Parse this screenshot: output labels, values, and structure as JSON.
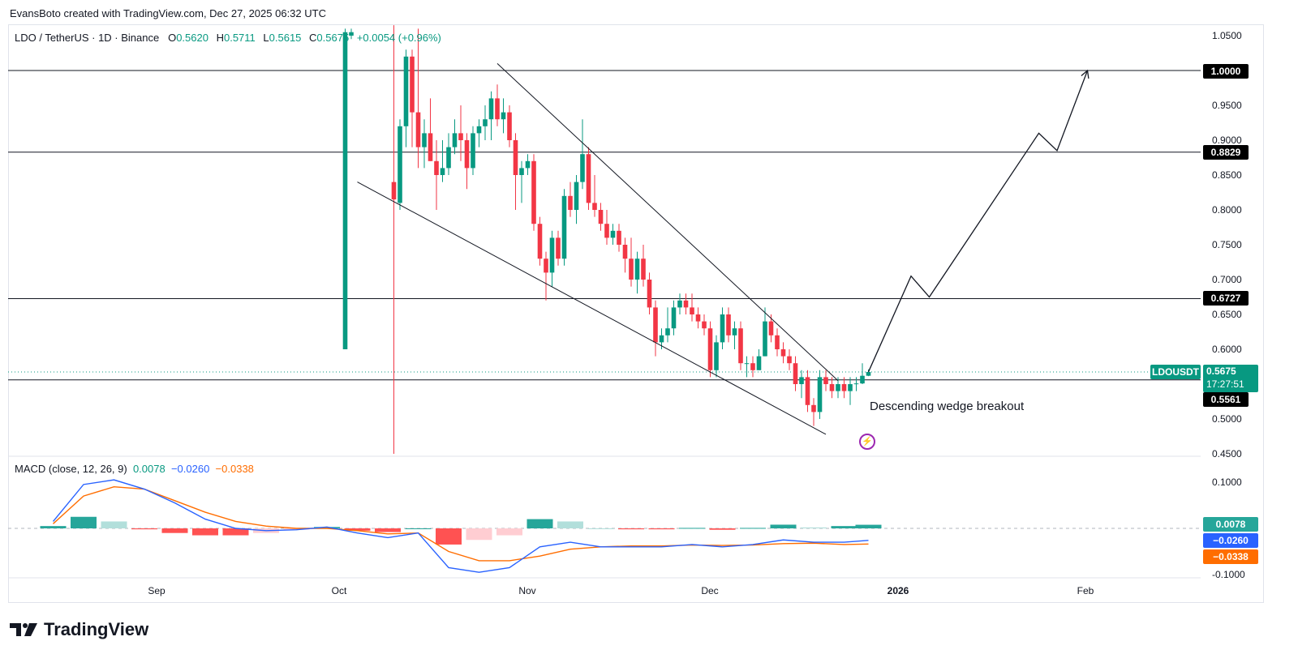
{
  "header": {
    "credit": "EvansBoto created with TradingView.com, Dec 27, 2025 06:32 UTC"
  },
  "legend": {
    "symbol": "LDO / TetherUS · 1D · Binance",
    "open_label": "O",
    "open": "0.5620",
    "high_label": "H",
    "high": "0.5711",
    "low_label": "L",
    "low": "0.5615",
    "close_label": "C",
    "close": "0.5675",
    "change": "+0.0054 (+0.96%)"
  },
  "macd_legend": {
    "title": "MACD (close, 12, 26, 9)",
    "hist": "0.0078",
    "macd": "−0.0260",
    "signal": "−0.0338"
  },
  "annotation": "Descending wedge breakout",
  "brand": "TradingView",
  "price_axis": [
    "1.0500",
    "0.9500",
    "0.9000",
    "0.8500",
    "0.8000",
    "0.7500",
    "0.7000",
    "0.6500",
    "0.6000",
    "0.5000",
    "0.4500"
  ],
  "macd_axis": [
    "0.1000",
    "-0.1000"
  ],
  "time_axis": [
    "Sep",
    "Oct",
    "Nov",
    "Dec",
    "2026",
    "Feb"
  ],
  "tags": {
    "level_1": "1.0000",
    "level_2": "0.8829",
    "level_3": "0.6727",
    "level_4": "0.5561",
    "symbol": "LDOUSDT",
    "price": "0.5675",
    "countdown": "17:27:51",
    "macd_hist": "0.0078",
    "macd_line": "−0.0260",
    "macd_signal": "−0.0338"
  },
  "colors": {
    "up": "#089981",
    "down": "#f23645",
    "macd_line": "#2962ff",
    "signal_line": "#ff6d00",
    "hist_up_strong": "#26a69a",
    "hist_up_weak": "#b2dfdb",
    "hist_down_strong": "#ff5252",
    "hist_down_weak": "#ffcdd2"
  },
  "chart_data": {
    "type": "candlestick",
    "title": "LDO / TetherUS · 1D · Binance",
    "ylim": [
      0.45,
      1.06
    ],
    "horizontal_levels": [
      1.0,
      0.8829,
      0.6727,
      0.5561
    ],
    "last_price": 0.5675,
    "candles": [
      {
        "d": "2025-10-10",
        "o": 0.84,
        "h": 1.07,
        "l": 0.45,
        "c": 0.815
      },
      {
        "d": "2025-10-11",
        "o": 0.81,
        "h": 0.93,
        "l": 0.8,
        "c": 0.92
      },
      {
        "d": "2025-10-12",
        "o": 0.92,
        "h": 1.03,
        "l": 0.89,
        "c": 1.02
      },
      {
        "d": "2025-10-13",
        "o": 1.02,
        "h": 1.03,
        "l": 0.89,
        "c": 0.94
      },
      {
        "d": "2025-10-14",
        "o": 0.94,
        "h": 1.06,
        "l": 0.86,
        "c": 0.89
      },
      {
        "d": "2025-10-15",
        "o": 0.89,
        "h": 0.93,
        "l": 0.86,
        "c": 0.91
      },
      {
        "d": "2025-10-16",
        "o": 0.91,
        "h": 0.96,
        "l": 0.87,
        "c": 0.87
      },
      {
        "d": "2025-10-17",
        "o": 0.87,
        "h": 0.9,
        "l": 0.8,
        "c": 0.85
      },
      {
        "d": "2025-10-18",
        "o": 0.85,
        "h": 0.9,
        "l": 0.84,
        "c": 0.86
      },
      {
        "d": "2025-10-19",
        "o": 0.86,
        "h": 0.91,
        "l": 0.85,
        "c": 0.89
      },
      {
        "d": "2025-10-20",
        "o": 0.89,
        "h": 0.93,
        "l": 0.88,
        "c": 0.91
      },
      {
        "d": "2025-10-21",
        "o": 0.91,
        "h": 0.95,
        "l": 0.87,
        "c": 0.9
      },
      {
        "d": "2025-10-22",
        "o": 0.9,
        "h": 0.91,
        "l": 0.83,
        "c": 0.86
      },
      {
        "d": "2025-10-23",
        "o": 0.86,
        "h": 0.92,
        "l": 0.85,
        "c": 0.91
      },
      {
        "d": "2025-10-24",
        "o": 0.91,
        "h": 0.93,
        "l": 0.89,
        "c": 0.92
      },
      {
        "d": "2025-10-25",
        "o": 0.92,
        "h": 0.95,
        "l": 0.9,
        "c": 0.93
      },
      {
        "d": "2025-10-26",
        "o": 0.93,
        "h": 0.97,
        "l": 0.9,
        "c": 0.96
      },
      {
        "d": "2025-10-27",
        "o": 0.96,
        "h": 0.98,
        "l": 0.92,
        "c": 0.93
      },
      {
        "d": "2025-10-28",
        "o": 0.93,
        "h": 0.96,
        "l": 0.91,
        "c": 0.94
      },
      {
        "d": "2025-10-29",
        "o": 0.94,
        "h": 0.95,
        "l": 0.89,
        "c": 0.9
      },
      {
        "d": "2025-10-30",
        "o": 0.9,
        "h": 0.91,
        "l": 0.8,
        "c": 0.85
      },
      {
        "d": "2025-10-31",
        "o": 0.85,
        "h": 0.87,
        "l": 0.81,
        "c": 0.86
      },
      {
        "d": "2025-11-01",
        "o": 0.86,
        "h": 0.88,
        "l": 0.85,
        "c": 0.87
      },
      {
        "d": "2025-11-02",
        "o": 0.87,
        "h": 0.88,
        "l": 0.77,
        "c": 0.78
      },
      {
        "d": "2025-11-03",
        "o": 0.78,
        "h": 0.79,
        "l": 0.72,
        "c": 0.73
      },
      {
        "d": "2025-11-04",
        "o": 0.73,
        "h": 0.74,
        "l": 0.67,
        "c": 0.71
      },
      {
        "d": "2025-11-05",
        "o": 0.71,
        "h": 0.77,
        "l": 0.69,
        "c": 0.76
      },
      {
        "d": "2025-11-06",
        "o": 0.76,
        "h": 0.77,
        "l": 0.72,
        "c": 0.73
      },
      {
        "d": "2025-11-07",
        "o": 0.73,
        "h": 0.83,
        "l": 0.72,
        "c": 0.82
      },
      {
        "d": "2025-11-08",
        "o": 0.82,
        "h": 0.84,
        "l": 0.79,
        "c": 0.8
      },
      {
        "d": "2025-11-09",
        "o": 0.8,
        "h": 0.85,
        "l": 0.78,
        "c": 0.84
      },
      {
        "d": "2025-11-10",
        "o": 0.84,
        "h": 0.93,
        "l": 0.83,
        "c": 0.88
      },
      {
        "d": "2025-11-11",
        "o": 0.88,
        "h": 0.89,
        "l": 0.8,
        "c": 0.81
      },
      {
        "d": "2025-11-12",
        "o": 0.81,
        "h": 0.85,
        "l": 0.79,
        "c": 0.8
      },
      {
        "d": "2025-11-13",
        "o": 0.8,
        "h": 0.81,
        "l": 0.77,
        "c": 0.78
      },
      {
        "d": "2025-11-14",
        "o": 0.78,
        "h": 0.8,
        "l": 0.75,
        "c": 0.76
      },
      {
        "d": "2025-11-15",
        "o": 0.76,
        "h": 0.78,
        "l": 0.75,
        "c": 0.77
      },
      {
        "d": "2025-11-16",
        "o": 0.77,
        "h": 0.78,
        "l": 0.74,
        "c": 0.75
      },
      {
        "d": "2025-11-17",
        "o": 0.75,
        "h": 0.76,
        "l": 0.71,
        "c": 0.73
      },
      {
        "d": "2025-11-18",
        "o": 0.73,
        "h": 0.76,
        "l": 0.69,
        "c": 0.7
      },
      {
        "d": "2025-11-19",
        "o": 0.7,
        "h": 0.74,
        "l": 0.68,
        "c": 0.73
      },
      {
        "d": "2025-11-20",
        "o": 0.73,
        "h": 0.75,
        "l": 0.69,
        "c": 0.7
      },
      {
        "d": "2025-11-21",
        "o": 0.7,
        "h": 0.71,
        "l": 0.65,
        "c": 0.66
      },
      {
        "d": "2025-11-22",
        "o": 0.66,
        "h": 0.67,
        "l": 0.59,
        "c": 0.61
      },
      {
        "d": "2025-11-23",
        "o": 0.61,
        "h": 0.63,
        "l": 0.6,
        "c": 0.62
      },
      {
        "d": "2025-11-24",
        "o": 0.62,
        "h": 0.66,
        "l": 0.61,
        "c": 0.63
      },
      {
        "d": "2025-11-25",
        "o": 0.63,
        "h": 0.67,
        "l": 0.62,
        "c": 0.66
      },
      {
        "d": "2025-11-26",
        "o": 0.66,
        "h": 0.68,
        "l": 0.65,
        "c": 0.67
      },
      {
        "d": "2025-11-27",
        "o": 0.67,
        "h": 0.68,
        "l": 0.65,
        "c": 0.66
      },
      {
        "d": "2025-11-28",
        "o": 0.66,
        "h": 0.68,
        "l": 0.64,
        "c": 0.65
      },
      {
        "d": "2025-11-29",
        "o": 0.65,
        "h": 0.66,
        "l": 0.63,
        "c": 0.64
      },
      {
        "d": "2025-11-30",
        "o": 0.64,
        "h": 0.65,
        "l": 0.62,
        "c": 0.63
      },
      {
        "d": "2025-12-01",
        "o": 0.63,
        "h": 0.64,
        "l": 0.56,
        "c": 0.57
      },
      {
        "d": "2025-12-02",
        "o": 0.57,
        "h": 0.62,
        "l": 0.56,
        "c": 0.61
      },
      {
        "d": "2025-12-03",
        "o": 0.61,
        "h": 0.66,
        "l": 0.6,
        "c": 0.65
      },
      {
        "d": "2025-12-04",
        "o": 0.65,
        "h": 0.66,
        "l": 0.61,
        "c": 0.62
      },
      {
        "d": "2025-12-05",
        "o": 0.62,
        "h": 0.64,
        "l": 0.6,
        "c": 0.63
      },
      {
        "d": "2025-12-06",
        "o": 0.63,
        "h": 0.64,
        "l": 0.57,
        "c": 0.58
      },
      {
        "d": "2025-12-07",
        "o": 0.58,
        "h": 0.59,
        "l": 0.56,
        "c": 0.58
      },
      {
        "d": "2025-12-08",
        "o": 0.58,
        "h": 0.59,
        "l": 0.56,
        "c": 0.57
      },
      {
        "d": "2025-12-09",
        "o": 0.57,
        "h": 0.6,
        "l": 0.57,
        "c": 0.59
      },
      {
        "d": "2025-12-10",
        "o": 0.59,
        "h": 0.66,
        "l": 0.59,
        "c": 0.64
      },
      {
        "d": "2025-12-11",
        "o": 0.64,
        "h": 0.65,
        "l": 0.61,
        "c": 0.62
      },
      {
        "d": "2025-12-12",
        "o": 0.62,
        "h": 0.63,
        "l": 0.59,
        "c": 0.6
      },
      {
        "d": "2025-12-13",
        "o": 0.6,
        "h": 0.61,
        "l": 0.58,
        "c": 0.59
      },
      {
        "d": "2025-12-14",
        "o": 0.59,
        "h": 0.6,
        "l": 0.57,
        "c": 0.58
      },
      {
        "d": "2025-12-15",
        "o": 0.58,
        "h": 0.59,
        "l": 0.54,
        "c": 0.55
      },
      {
        "d": "2025-12-16",
        "o": 0.55,
        "h": 0.57,
        "l": 0.53,
        "c": 0.56
      },
      {
        "d": "2025-12-17",
        "o": 0.56,
        "h": 0.57,
        "l": 0.51,
        "c": 0.52
      },
      {
        "d": "2025-12-18",
        "o": 0.52,
        "h": 0.53,
        "l": 0.49,
        "c": 0.51
      },
      {
        "d": "2025-12-19",
        "o": 0.51,
        "h": 0.57,
        "l": 0.5,
        "c": 0.56
      },
      {
        "d": "2025-12-20",
        "o": 0.56,
        "h": 0.57,
        "l": 0.54,
        "c": 0.55
      },
      {
        "d": "2025-12-21",
        "o": 0.55,
        "h": 0.56,
        "l": 0.53,
        "c": 0.54
      },
      {
        "d": "2025-12-22",
        "o": 0.54,
        "h": 0.56,
        "l": 0.53,
        "c": 0.55
      },
      {
        "d": "2025-12-23",
        "o": 0.55,
        "h": 0.56,
        "l": 0.53,
        "c": 0.54
      },
      {
        "d": "2025-12-24",
        "o": 0.54,
        "h": 0.56,
        "l": 0.52,
        "c": 0.55
      },
      {
        "d": "2025-12-25",
        "o": 0.55,
        "h": 0.56,
        "l": 0.54,
        "c": 0.551
      },
      {
        "d": "2025-12-26",
        "o": 0.551,
        "h": 0.58,
        "l": 0.55,
        "c": 0.562
      },
      {
        "d": "2025-12-27",
        "o": 0.562,
        "h": 0.5711,
        "l": 0.5615,
        "c": 0.5675
      }
    ],
    "early_candles": [
      {
        "d": "2025-10-02",
        "o": 0.6,
        "h": 1.06,
        "l": 1.04,
        "c": 1.055
      },
      {
        "d": "2025-10-03",
        "o": 1.05,
        "h": 1.06,
        "l": 1.045,
        "c": 1.055
      }
    ],
    "wedge": {
      "upper": [
        [
          "2025-10-27",
          1.01
        ],
        [
          "2025-12-22",
          0.555
        ]
      ],
      "lower": [
        [
          "2025-10-04",
          0.84
        ],
        [
          "2025-12-20",
          0.478
        ]
      ]
    },
    "projection": [
      [
        "2025-12-27",
        0.5675
      ],
      [
        "2026-01-03",
        0.705
      ],
      [
        "2026-01-06",
        0.675
      ],
      [
        "2026-01-24",
        0.91
      ],
      [
        "2026-01-27",
        0.885
      ],
      [
        "2026-02-01",
        1.0
      ]
    ],
    "macd": {
      "ylim": [
        -0.11,
        0.13
      ],
      "x": [
        "2025-08-15",
        "2025-08-20",
        "2025-08-25",
        "2025-08-30",
        "2025-09-04",
        "2025-09-09",
        "2025-09-14",
        "2025-09-19",
        "2025-09-24",
        "2025-09-29",
        "2025-10-04",
        "2025-10-09",
        "2025-10-14",
        "2025-10-19",
        "2025-10-24",
        "2025-10-29",
        "2025-11-03",
        "2025-11-08",
        "2025-11-13",
        "2025-11-18",
        "2025-11-23",
        "2025-11-28",
        "2025-12-03",
        "2025-12-08",
        "2025-12-13",
        "2025-12-18",
        "2025-12-23",
        "2025-12-27"
      ],
      "macd_line": [
        0.015,
        0.095,
        0.105,
        0.085,
        0.055,
        0.02,
        0.0,
        -0.005,
        -0.003,
        0.003,
        -0.01,
        -0.02,
        -0.01,
        -0.085,
        -0.095,
        -0.085,
        -0.04,
        -0.03,
        -0.04,
        -0.04,
        -0.04,
        -0.035,
        -0.04,
        -0.035,
        -0.025,
        -0.03,
        -0.03,
        -0.026
      ],
      "signal_line": [
        0.01,
        0.07,
        0.09,
        0.085,
        0.06,
        0.035,
        0.015,
        0.005,
        0.0,
        0.0,
        -0.005,
        -0.012,
        -0.01,
        -0.05,
        -0.07,
        -0.07,
        -0.06,
        -0.045,
        -0.04,
        -0.038,
        -0.038,
        -0.036,
        -0.037,
        -0.036,
        -0.033,
        -0.032,
        -0.035,
        -0.0338
      ],
      "histogram": [
        0.005,
        0.025,
        0.015,
        -0.002,
        -0.01,
        -0.015,
        -0.015,
        -0.01,
        -0.003,
        0.003,
        -0.005,
        -0.008,
        0.0,
        -0.035,
        -0.025,
        -0.015,
        0.02,
        0.015,
        0.0,
        -0.002,
        -0.002,
        0.001,
        -0.003,
        0.001,
        0.008,
        0.002,
        0.005,
        0.0078
      ]
    }
  }
}
